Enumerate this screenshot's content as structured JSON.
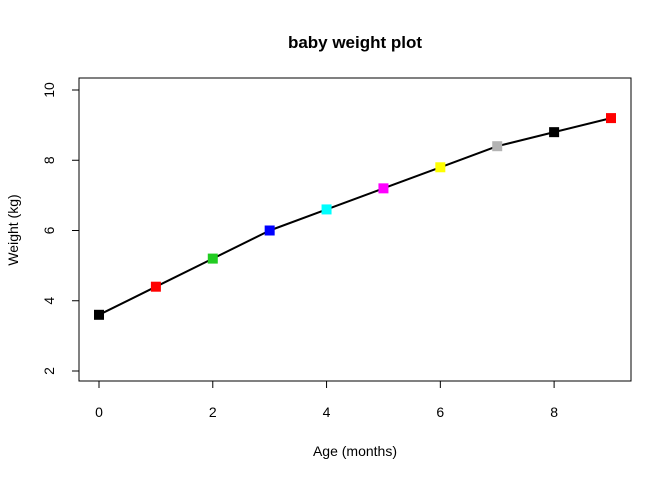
{
  "chart_data": {
    "type": "line",
    "title": "baby weight plot",
    "xlabel": "Age (months)",
    "ylabel": "Weight (kg)",
    "xlim": [
      0,
      9
    ],
    "ylim": [
      2,
      10
    ],
    "x_ticks": [
      0,
      2,
      4,
      6,
      8
    ],
    "y_ticks": [
      2,
      4,
      6,
      8,
      10
    ],
    "grid": false,
    "series": [
      {
        "x": [
          0,
          1,
          2,
          3,
          4,
          5,
          6,
          7,
          8,
          9
        ],
        "values": [
          3.6,
          4.4,
          5.2,
          6.0,
          6.6,
          7.2,
          7.8,
          8.4,
          8.8,
          9.2
        ],
        "line_color": "#000000",
        "marker": "square",
        "marker_colors": [
          "#000000",
          "#ff0000",
          "#22cc22",
          "#0000ff",
          "#00ffff",
          "#ff00ff",
          "#ffff00",
          "#b3b3b3",
          "#000000",
          "#ff0000"
        ]
      }
    ]
  }
}
